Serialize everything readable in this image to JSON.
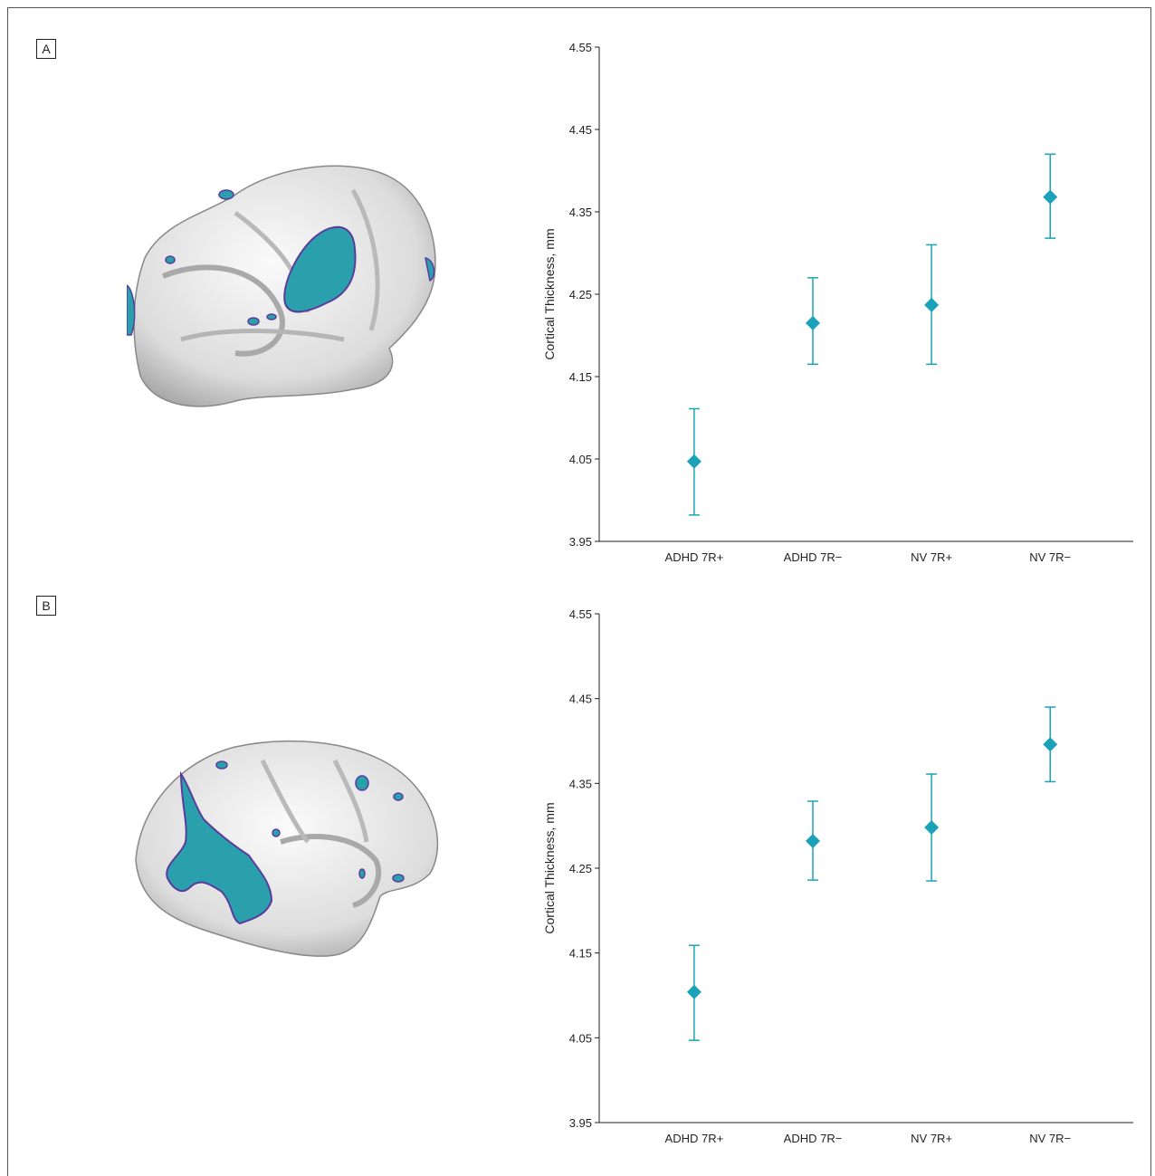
{
  "colors": {
    "marker": "#1aa3b8",
    "axis": "#231f20",
    "brain_surface": "#e6e6e6",
    "region": "#2aa0ad",
    "region_edge": "#5a3c9c"
  },
  "panels": [
    {
      "label": "A"
    },
    {
      "label": "B"
    }
  ],
  "chart_data": [
    {
      "type": "scatter",
      "panel": "A",
      "categories": [
        "ADHD 7R+",
        "ADHD 7R−",
        "NV 7R+",
        "NV 7R−"
      ],
      "values": [
        4.047,
        4.215,
        4.237,
        4.368
      ],
      "error_low": [
        3.982,
        4.165,
        4.165,
        4.318
      ],
      "error_high": [
        4.111,
        4.27,
        4.31,
        4.42
      ],
      "ylabel": "Cortical Thickness, mm",
      "xlabel": "",
      "ylim": [
        3.95,
        4.55
      ],
      "yticks": [
        "3.95",
        "4.05",
        "4.15",
        "4.25",
        "4.35",
        "4.45",
        "4.55"
      ],
      "marker": "diamond",
      "grid": false
    },
    {
      "type": "scatter",
      "panel": "B",
      "categories": [
        "ADHD 7R+",
        "ADHD 7R−",
        "NV 7R+",
        "NV 7R−"
      ],
      "values": [
        4.104,
        4.282,
        4.298,
        4.396
      ],
      "error_low": [
        4.047,
        4.236,
        4.235,
        4.352
      ],
      "error_high": [
        4.159,
        4.329,
        4.361,
        4.44
      ],
      "ylabel": "Cortical Thickness, mm",
      "xlabel": "",
      "ylim": [
        3.95,
        4.55
      ],
      "yticks": [
        "3.95",
        "4.05",
        "4.15",
        "4.25",
        "4.35",
        "4.45",
        "4.55"
      ],
      "marker": "diamond",
      "grid": false
    }
  ]
}
